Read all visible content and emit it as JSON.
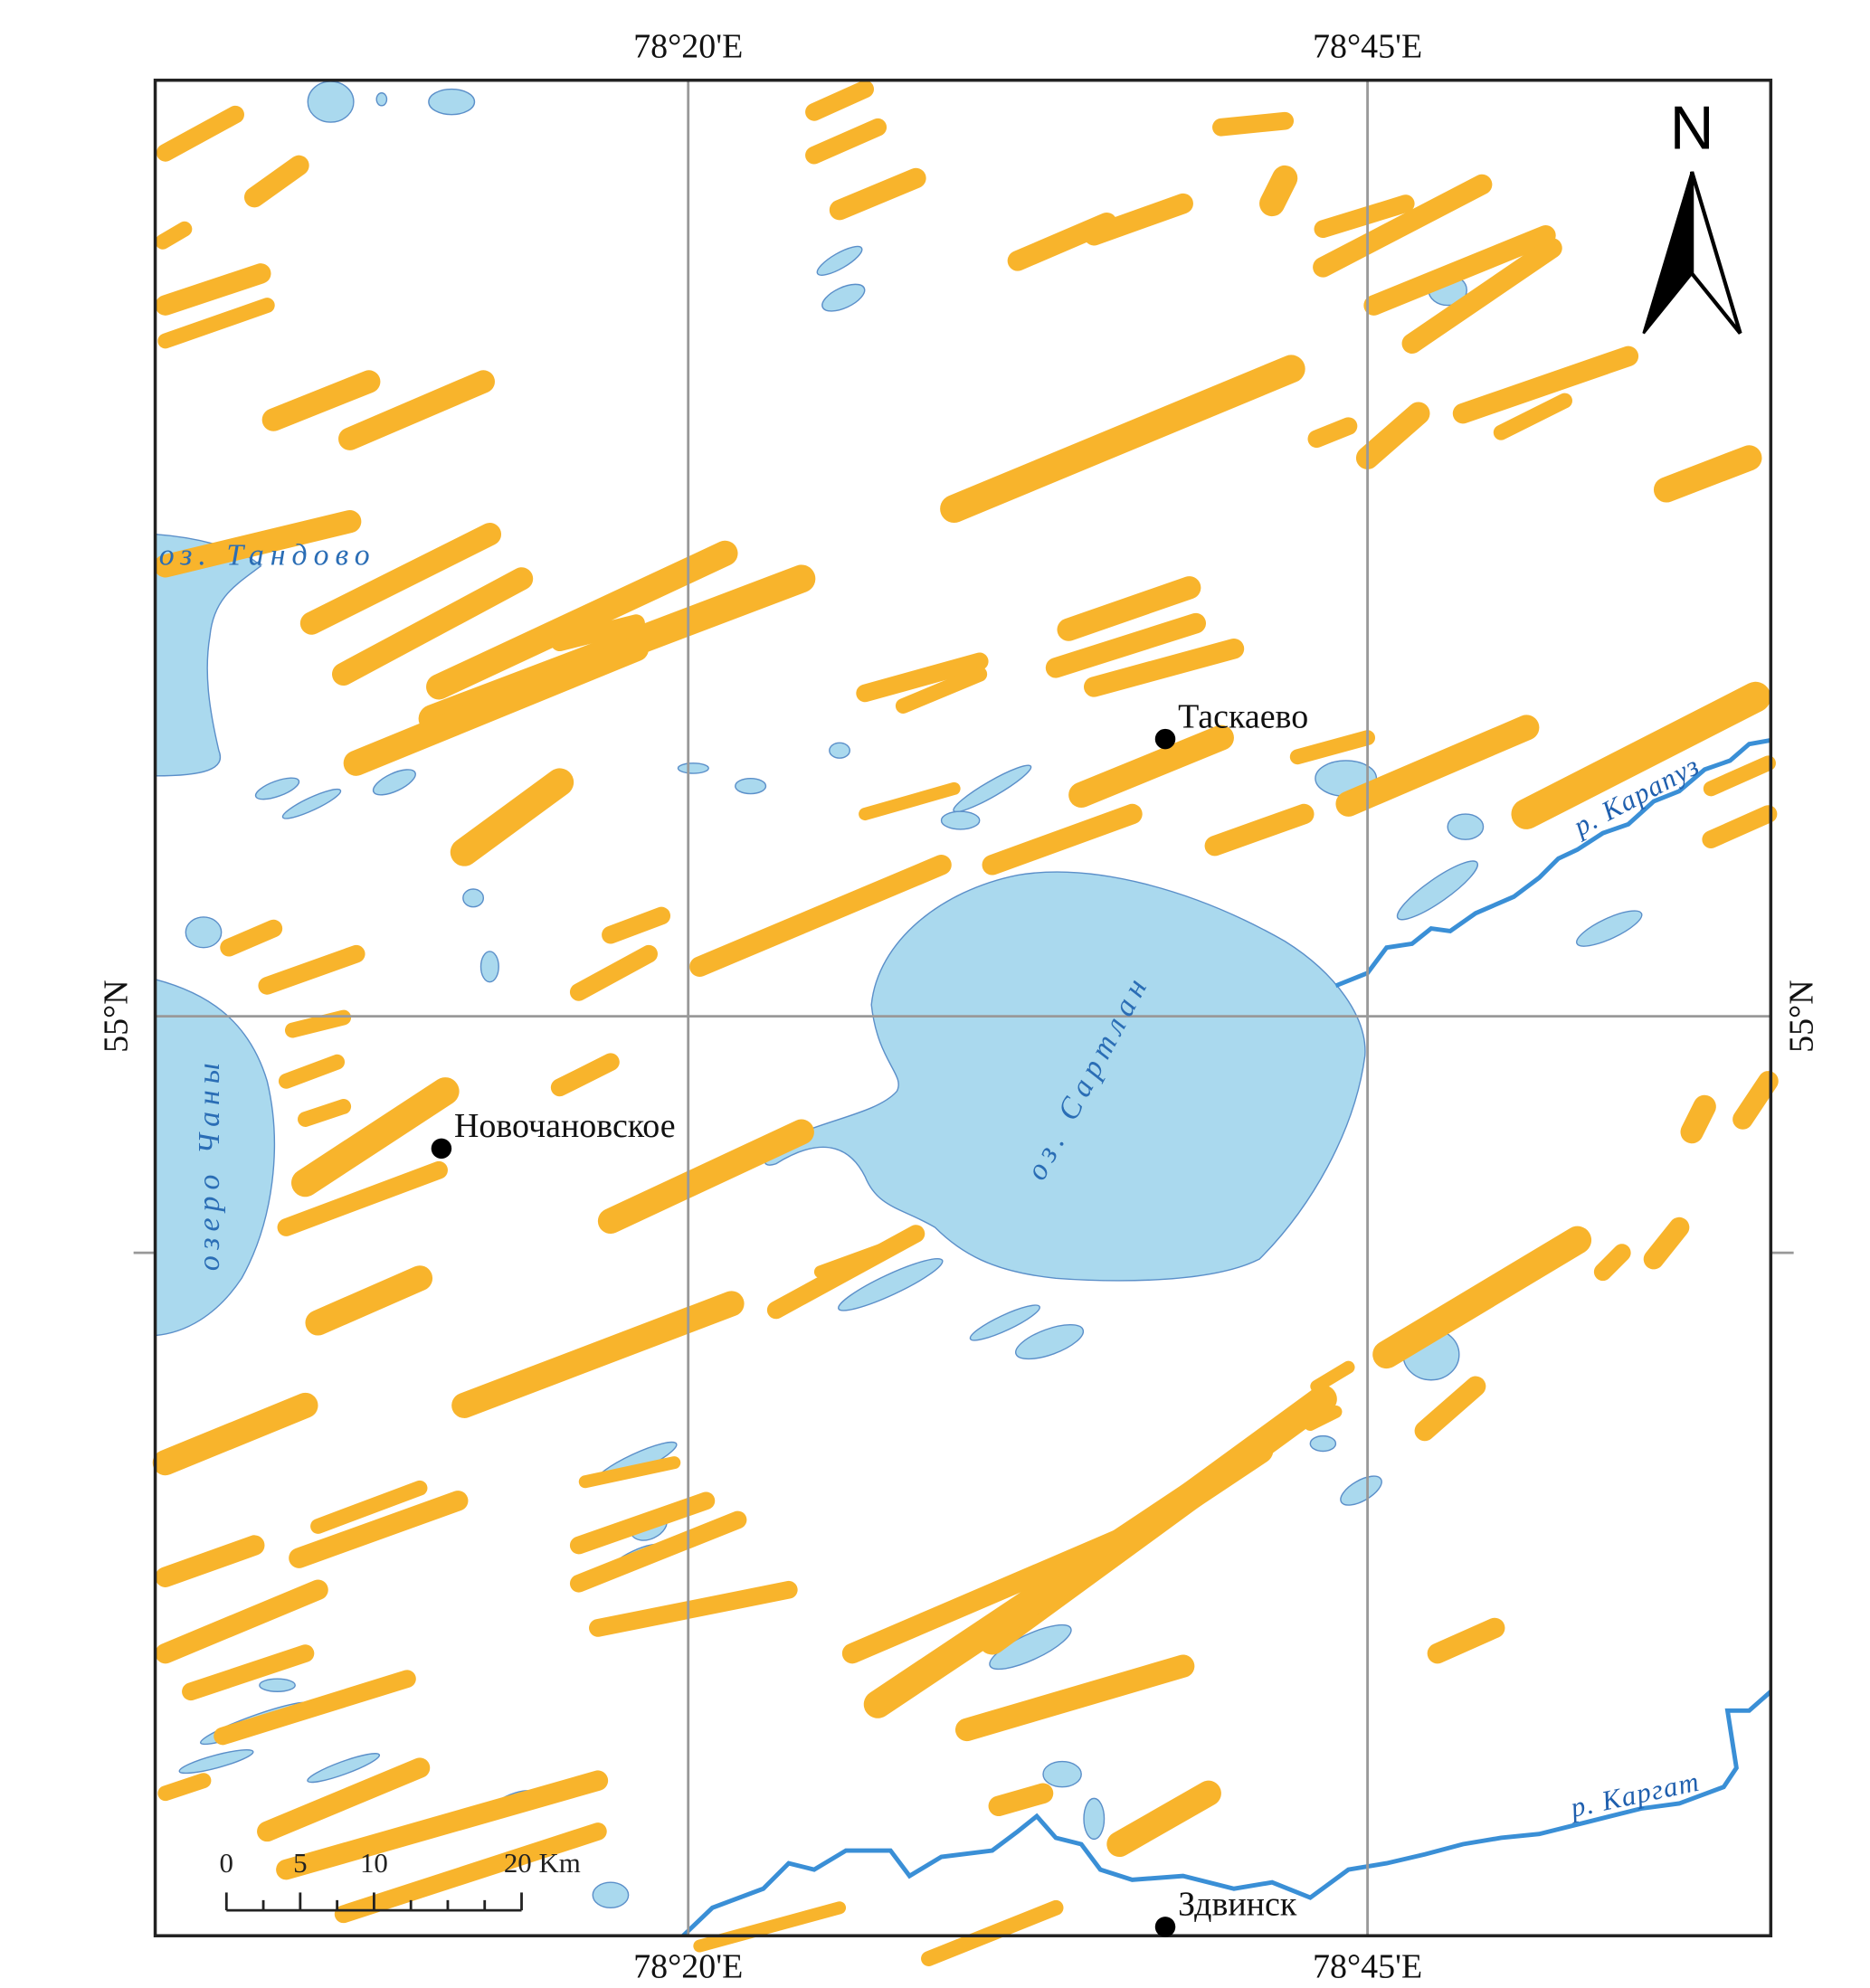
{
  "graticule": {
    "top": [
      "78°20'E",
      "78°45'E"
    ],
    "bottom": [
      "78°20'E",
      "78°45'E"
    ],
    "left": [
      "55°N"
    ],
    "right": [
      "55°N"
    ]
  },
  "settlements": [
    {
      "name": "Таскаево"
    },
    {
      "name": "Новочановское"
    },
    {
      "name": "Здвинск"
    }
  ],
  "water_bodies": [
    {
      "name": "оз. Тандово"
    },
    {
      "name": "озеро Чаны"
    },
    {
      "name": "оз. Сартлан"
    }
  ],
  "rivers": [
    {
      "name": "р. Карапуз"
    },
    {
      "name": "р. Каргат"
    }
  ],
  "north_arrow": "N",
  "scale_bar": {
    "labels": [
      "0",
      "5",
      "10",
      "20 Km"
    ]
  }
}
